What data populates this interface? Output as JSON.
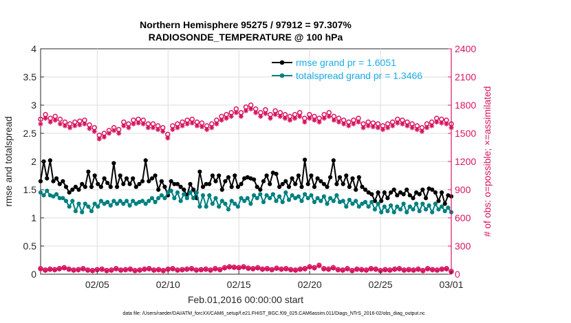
{
  "chart_data": {
    "type": "line",
    "title_line1": "Northern Hemisphere 95275 / 97912 = 97.307%",
    "title_line2": "RADIOSONDE_TEMPERATURE @ 100 hPa",
    "xlabel": "Feb.01,2016 00:00:00 start",
    "ylabel_left": "rmse and totalspread",
    "ylabel_right": "# of obs: o=possible; ×=assimilated",
    "footer": "data file: /Users/raeder/DAI/ATM_forcXX/CAM6_setup/f.e21.FHIST_BGC.f09_025.CAM6assim.011/Diags_NTrS_2016-02/obs_diag_output.nc",
    "xlim": [
      1,
      30
    ],
    "x_ticks": [
      5,
      10,
      15,
      20,
      25,
      30
    ],
    "x_tick_labels": [
      "02/05",
      "02/10",
      "02/15",
      "02/20",
      "02/25",
      "03/01"
    ],
    "ylim_left": [
      0,
      4
    ],
    "y_left_ticks": [
      "0",
      "0.5",
      "1",
      "1.5",
      "2",
      "2.5",
      "3",
      "3.5",
      "4"
    ],
    "ylim_right": [
      0,
      2400
    ],
    "y_right_ticks": [
      "0",
      "300",
      "600",
      "900",
      "1200",
      "1500",
      "1800",
      "2100",
      "2400"
    ],
    "colors": {
      "rmse": "#000000",
      "spread": "#008080",
      "obs": "#d6145f",
      "legend_text": "#1aaee5",
      "axis": "#262626"
    },
    "legend": [
      "rmse grand pr = 1.6051",
      "totalspread grand pr = 1.3466"
    ],
    "series": [
      {
        "name": "rmse",
        "axis": "left",
        "values": [
          1.65,
          2.0,
          1.7,
          2.02,
          1.65,
          1.7,
          1.6,
          1.65,
          1.55,
          1.45,
          1.5,
          1.55,
          1.5,
          1.6,
          1.55,
          1.82,
          1.55,
          1.75,
          1.6,
          1.55,
          1.7,
          1.62,
          1.55,
          1.97,
          1.55,
          1.75,
          1.6,
          1.7,
          1.6,
          1.7,
          1.55,
          1.6,
          1.65,
          2.02,
          1.65,
          1.7,
          1.75,
          1.5,
          1.65,
          1.55,
          1.4,
          1.65,
          1.6,
          1.6,
          1.55,
          1.5,
          1.4,
          1.6,
          1.5,
          1.35,
          1.82,
          1.55,
          1.6,
          1.6,
          1.75,
          1.65,
          1.75,
          1.5,
          1.65,
          1.72,
          1.55,
          1.75,
          1.55,
          1.6,
          1.7,
          1.72,
          1.7,
          1.68,
          1.55,
          1.5,
          1.65,
          1.75,
          1.6,
          1.8,
          1.78,
          1.55,
          1.6,
          1.65,
          1.55,
          1.7,
          1.6,
          1.75,
          1.55,
          2.03,
          1.6,
          1.75,
          1.55,
          1.7,
          1.65,
          1.6,
          1.55,
          1.72,
          2.02,
          1.6,
          1.72,
          1.6,
          1.75,
          1.55,
          1.7,
          1.5,
          1.72,
          1.55,
          1.5,
          1.45,
          1.42,
          1.3,
          1.45,
          1.3,
          1.45,
          1.35,
          1.45,
          1.5,
          1.4,
          1.45,
          1.42,
          1.5,
          1.4,
          1.35,
          1.45,
          1.42,
          1.5,
          1.35,
          1.52,
          1.5,
          1.45,
          1.3,
          1.45,
          1.25,
          1.4,
          1.38
        ]
      },
      {
        "name": "totalspread",
        "axis": "left",
        "values": [
          1.45,
          1.4,
          1.48,
          1.4,
          1.38,
          1.42,
          1.35,
          1.35,
          1.3,
          1.2,
          1.3,
          1.12,
          1.25,
          1.1,
          1.25,
          1.2,
          1.12,
          1.25,
          1.2,
          1.3,
          1.25,
          1.28,
          1.22,
          1.3,
          1.25,
          1.3,
          1.25,
          1.3,
          1.22,
          1.3,
          1.25,
          1.28,
          1.3,
          1.25,
          1.3,
          1.35,
          1.28,
          1.35,
          1.4,
          1.35,
          1.45,
          1.48,
          1.35,
          1.45,
          1.3,
          1.42,
          1.35,
          1.45,
          1.35,
          1.45,
          1.2,
          1.4,
          1.2,
          1.4,
          1.25,
          1.35,
          1.2,
          1.3,
          1.25,
          1.15,
          1.3,
          1.25,
          1.2,
          1.35,
          1.3,
          1.35,
          1.25,
          1.4,
          1.35,
          1.42,
          1.28,
          1.4,
          1.35,
          1.42,
          1.3,
          1.38,
          1.28,
          1.45,
          1.32,
          1.4,
          1.35,
          1.38,
          1.3,
          1.42,
          1.35,
          1.4,
          1.28,
          1.35,
          1.3,
          1.38,
          1.25,
          1.35,
          1.3,
          1.4,
          1.28,
          1.3,
          1.2,
          1.32,
          1.25,
          1.3,
          1.2,
          1.25,
          1.28,
          1.2,
          1.28,
          1.15,
          1.25,
          1.1,
          1.2,
          1.12,
          1.22,
          1.1,
          1.2,
          1.15,
          1.25,
          1.1,
          1.2,
          1.15,
          1.25,
          1.12,
          1.25,
          1.15,
          1.22,
          1.1,
          1.25,
          1.15,
          1.2,
          1.12,
          1.18,
          1.1
        ]
      },
      {
        "name": "possible",
        "axis": "right",
        "values": [
          1650,
          1700,
          1660,
          1680,
          1650,
          1620,
          1600,
          1620,
          1630,
          1640,
          1590,
          1560,
          1480,
          1500,
          1530,
          1560,
          1540,
          1620,
          1600,
          1640,
          1650,
          1640,
          1600,
          1600,
          1580,
          1560,
          1490,
          1580,
          1600,
          1620,
          1640,
          1650,
          1620,
          1610,
          1580,
          1600,
          1640,
          1680,
          1700,
          1720,
          1760,
          1720,
          1780,
          1800,
          1760,
          1720,
          1750,
          1700,
          1740,
          1720,
          1700,
          1680,
          1700,
          1720,
          1660,
          1700,
          1680,
          1660,
          1700,
          1720,
          1680,
          1660,
          1640,
          1620,
          1640,
          1660,
          1600,
          1620,
          1610,
          1600,
          1580,
          1600,
          1620,
          1650,
          1640,
          1620,
          1600,
          1580,
          1560,
          1600,
          1620,
          1660,
          1650,
          1640,
          1600
        ]
      },
      {
        "name": "assimilated",
        "axis": "right",
        "values": [
          1600,
          1660,
          1620,
          1640,
          1600,
          1580,
          1560,
          1580,
          1590,
          1600,
          1550,
          1520,
          1440,
          1460,
          1500,
          1530,
          1500,
          1580,
          1560,
          1600,
          1610,
          1600,
          1560,
          1560,
          1540,
          1520,
          1450,
          1540,
          1560,
          1580,
          1600,
          1610,
          1580,
          1570,
          1540,
          1560,
          1600,
          1640,
          1660,
          1680,
          1720,
          1680,
          1740,
          1760,
          1720,
          1680,
          1710,
          1660,
          1700,
          1680,
          1660,
          1640,
          1660,
          1680,
          1620,
          1660,
          1640,
          1620,
          1660,
          1680,
          1640,
          1620,
          1600,
          1580,
          1600,
          1620,
          1560,
          1580,
          1570,
          1560,
          1540,
          1560,
          1580,
          1610,
          1600,
          1580,
          1560,
          1540,
          1520,
          1560,
          1580,
          1620,
          1610,
          1600,
          1560
        ]
      },
      {
        "name": "possible_low",
        "axis": "right",
        "values": [
          60,
          45,
          55,
          50,
          60,
          70,
          55,
          45,
          50,
          60,
          45,
          40,
          50,
          55,
          40,
          45,
          60,
          45,
          50,
          55,
          40,
          45,
          55,
          60,
          45,
          50,
          40,
          55,
          60,
          45,
          50,
          55,
          60,
          45,
          50,
          55,
          45,
          60,
          50,
          70,
          80,
          75,
          70,
          80,
          65,
          60,
          70,
          55,
          60,
          50,
          65,
          55,
          60,
          50,
          45,
          55,
          60,
          80,
          70,
          95,
          60,
          55,
          70,
          50,
          45,
          60,
          40,
          55,
          50,
          45,
          60,
          55,
          40,
          50,
          45,
          55,
          60,
          45,
          50,
          45,
          55,
          40,
          60,
          50,
          45,
          55,
          60,
          30
        ]
      },
      {
        "name": "assimilated_low",
        "axis": "right",
        "values": [
          55,
          40,
          50,
          45,
          55,
          65,
          50,
          40,
          45,
          55,
          40,
          35,
          45,
          50,
          35,
          40,
          55,
          40,
          45,
          50,
          35,
          40,
          50,
          55,
          40,
          45,
          35,
          50,
          55,
          40,
          45,
          50,
          55,
          40,
          45,
          50,
          40,
          55,
          45,
          65,
          75,
          70,
          65,
          75,
          60,
          55,
          65,
          50,
          55,
          45,
          60,
          50,
          55,
          45,
          40,
          50,
          55,
          75,
          65,
          90,
          55,
          50,
          65,
          45,
          40,
          55,
          35,
          50,
          45,
          40,
          55,
          50,
          35,
          45,
          40,
          50,
          55,
          40,
          45,
          40,
          50,
          35,
          55,
          45,
          40,
          50,
          55,
          25
        ]
      }
    ]
  }
}
